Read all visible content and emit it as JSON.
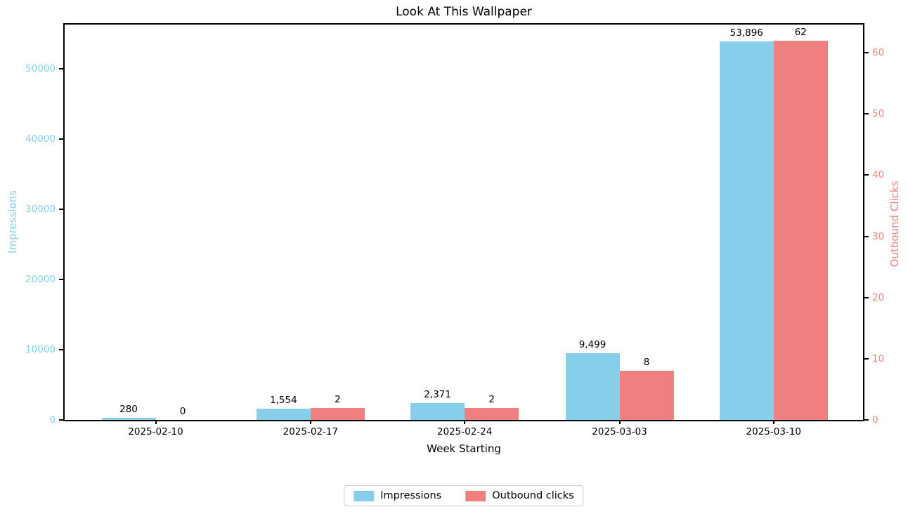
{
  "window": {
    "background_color": "#ffffff"
  },
  "chart_data": {
    "type": "bar",
    "title": "Look At This Wallpaper",
    "xlabel": "Week Starting",
    "categories": [
      "2025-02-10",
      "2025-02-17",
      "2025-02-24",
      "2025-03-03",
      "2025-03-10"
    ],
    "series": [
      {
        "name": "Impressions",
        "axis": "left",
        "color": "#87CEEB",
        "values": [
          280,
          1554,
          2371,
          9499,
          53896
        ],
        "value_labels": [
          "280",
          "1,554",
          "2,371",
          "9,499",
          "53,896"
        ]
      },
      {
        "name": "Outbound clicks",
        "axis": "right",
        "color": "#F08080",
        "values": [
          0,
          2,
          2,
          8,
          62
        ],
        "value_labels": [
          "0",
          "2",
          "2",
          "8",
          "62"
        ]
      }
    ],
    "axes": {
      "left": {
        "label": "Impressions",
        "color": "#87CEEB",
        "ticks": [
          0,
          10000,
          20000,
          30000,
          40000,
          50000
        ],
        "tick_labels": [
          "0",
          "10000",
          "20000",
          "30000",
          "40000",
          "50000"
        ],
        "range": [
          0,
          56300
        ]
      },
      "right": {
        "label": "Outbound Clicks",
        "color": "#F08080",
        "ticks": [
          0,
          10,
          20,
          30,
          40,
          50,
          60
        ],
        "tick_labels": [
          "0",
          "10",
          "20",
          "30",
          "40",
          "50",
          "60"
        ],
        "range": [
          0,
          64.6
        ]
      }
    },
    "legend": {
      "position": "bottom-center",
      "entries": [
        "Impressions",
        "Outbound clicks"
      ]
    },
    "grid": false,
    "spine_color": "#000000",
    "text_color": "#000000"
  }
}
